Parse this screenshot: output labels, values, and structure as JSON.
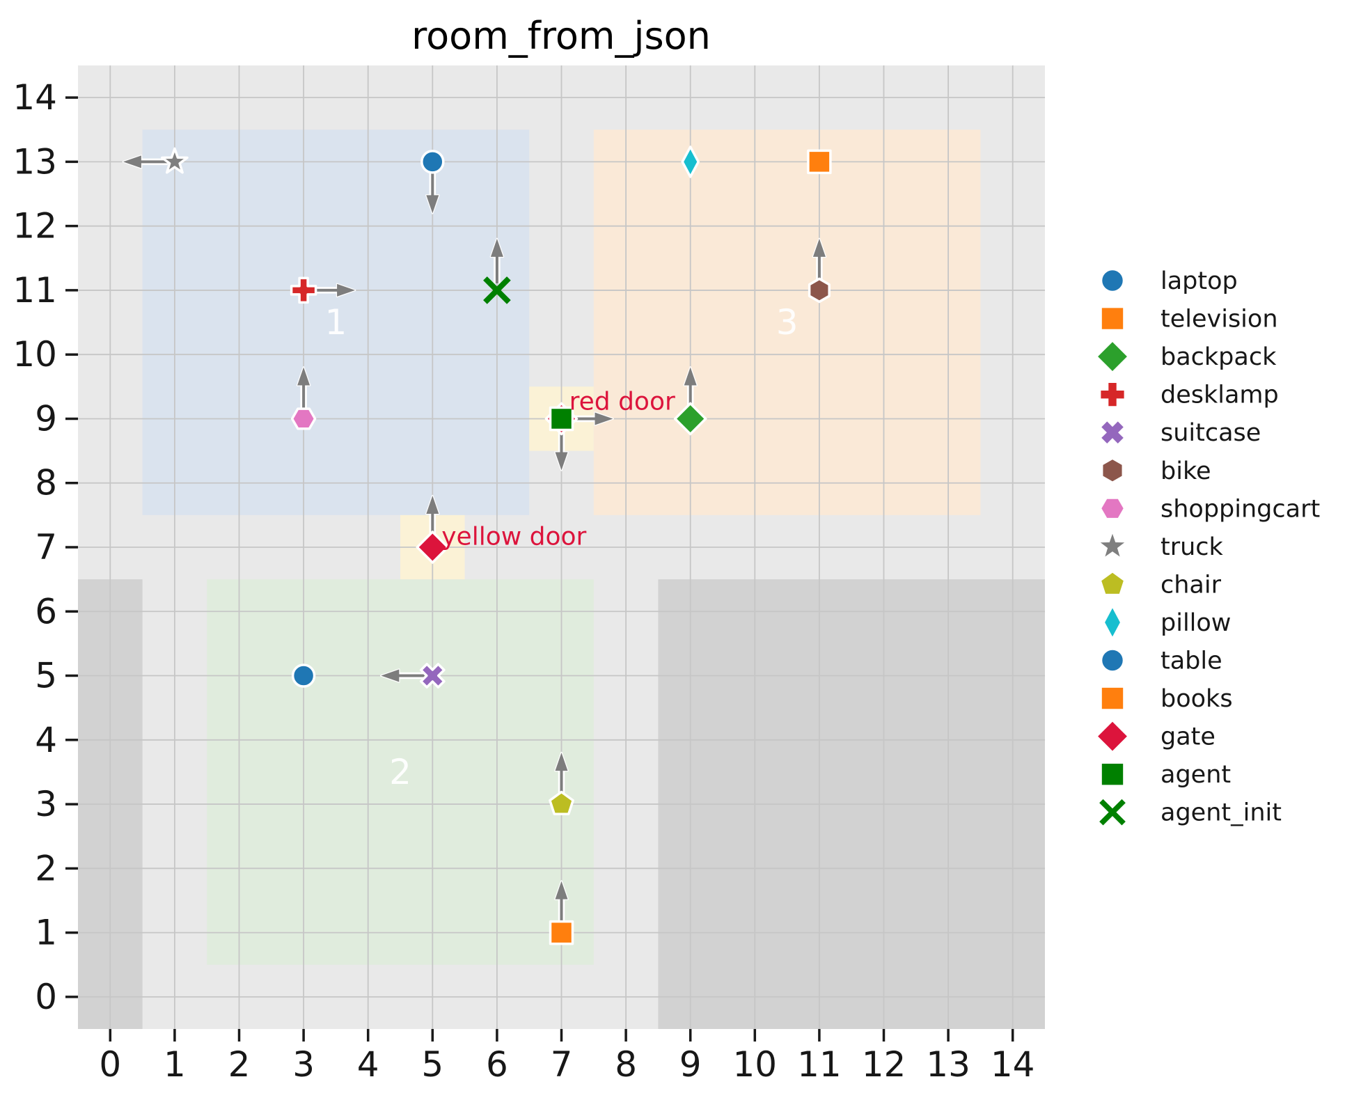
{
  "title": "room_from_json",
  "axes": {
    "x_ticks": [
      "0",
      "1",
      "2",
      "3",
      "4",
      "5",
      "6",
      "7",
      "8",
      "9",
      "10",
      "11",
      "12",
      "13",
      "14"
    ],
    "y_ticks": [
      "0",
      "1",
      "2",
      "3",
      "4",
      "5",
      "6",
      "7",
      "8",
      "9",
      "10",
      "11",
      "12",
      "13",
      "14"
    ]
  },
  "palette": {
    "plot_bg": "#e9e9e9",
    "grid": "#c6c6c6",
    "blocked_area": "#d2d2d2",
    "door_area": "#fbf2d6",
    "arrow": "#7d7d7d",
    "marker_edge": "#ffffff",
    "door_label": "#dc143c",
    "tick": "#1a1a1a"
  },
  "chart_data": {
    "type": "scatter",
    "title": "room_from_json",
    "xlabel": "",
    "ylabel": "",
    "xlim": [
      -0.5,
      14.5
    ],
    "ylim": [
      -0.5,
      14.5
    ],
    "grid": true,
    "legend_position": "right-outside",
    "x_ticks": [
      0,
      1,
      2,
      3,
      4,
      5,
      6,
      7,
      8,
      9,
      10,
      11,
      12,
      13,
      14
    ],
    "y_ticks": [
      0,
      1,
      2,
      3,
      4,
      5,
      6,
      7,
      8,
      9,
      10,
      11,
      12,
      13,
      14
    ],
    "rooms": [
      {
        "id": "1",
        "label": "1",
        "x0": 0.5,
        "y0": 7.5,
        "x1": 6.5,
        "y1": 13.5,
        "color": "#dae3ee",
        "label_x": 3.5,
        "label_y": 10.5
      },
      {
        "id": "2",
        "label": "2",
        "x0": 1.5,
        "y0": 0.5,
        "x1": 7.5,
        "y1": 6.5,
        "color": "#e0ecdd",
        "label_x": 4.5,
        "label_y": 3.5
      },
      {
        "id": "3",
        "label": "3",
        "x0": 7.5,
        "y0": 7.5,
        "x1": 13.5,
        "y1": 13.5,
        "color": "#fae9d7",
        "label_x": 10.5,
        "label_y": 10.5
      }
    ],
    "blocked_areas": [
      {
        "id": "blocked-left",
        "x0": -0.5,
        "y0": -0.5,
        "x1": 0.5,
        "y1": 6.5
      },
      {
        "id": "blocked-bottom-right",
        "x0": 8.5,
        "y0": -0.5,
        "x1": 14.5,
        "y1": 6.5
      }
    ],
    "doors": [
      {
        "name": "yellow door",
        "label": "yellow door",
        "x": 5,
        "y": 7,
        "x0": 4.5,
        "y0": 6.5,
        "x1": 5.5,
        "y1": 7.5,
        "label_x": 5.14,
        "label_y": 7.17
      },
      {
        "name": "red door",
        "label": "red door",
        "x": 7,
        "y": 9,
        "x0": 6.5,
        "y0": 8.5,
        "x1": 7.5,
        "y1": 9.5,
        "label_x": 7.12,
        "label_y": 9.27
      }
    ],
    "objects": [
      {
        "name": "truck",
        "x": 1,
        "y": 13,
        "marker": "star",
        "color": "#7f7f7f",
        "arrow": "left"
      },
      {
        "name": "laptop",
        "x": 5,
        "y": 13,
        "marker": "circle",
        "color": "#1f77b4",
        "arrow": "down"
      },
      {
        "name": "pillow",
        "x": 9,
        "y": 13,
        "marker": "thin-diamond",
        "color": "#17becf",
        "arrow": null
      },
      {
        "name": "television",
        "x": 11,
        "y": 13,
        "marker": "square",
        "color": "#ff7f0e",
        "arrow": null
      },
      {
        "name": "desklamp",
        "x": 3,
        "y": 11,
        "marker": "plus",
        "color": "#d62728",
        "arrow": "right"
      },
      {
        "name": "agent_init",
        "x": 6,
        "y": 11,
        "marker": "x-thin",
        "color": "#008000",
        "arrow": "up"
      },
      {
        "name": "bike",
        "x": 11,
        "y": 11,
        "marker": "hexagon-v",
        "color": "#8c564b",
        "arrow": "up"
      },
      {
        "name": "shoppingcart",
        "x": 3,
        "y": 9,
        "marker": "hexagon-h",
        "color": "#e377c2",
        "arrow": "up"
      },
      {
        "name": "gate-red-door",
        "x": 7,
        "y": 9,
        "marker": "diamond",
        "color": "#dc143c",
        "arrow": "down"
      },
      {
        "name": "agent",
        "x": 7,
        "y": 9,
        "marker": "square",
        "color": "#008000",
        "arrow": "right"
      },
      {
        "name": "backpack",
        "x": 9,
        "y": 9,
        "marker": "diamond",
        "color": "#2ca02c",
        "arrow": "up"
      },
      {
        "name": "gate-yellow-door",
        "x": 5,
        "y": 7,
        "marker": "diamond",
        "color": "#dc143c",
        "arrow": "up"
      },
      {
        "name": "table",
        "x": 3,
        "y": 5,
        "marker": "circle",
        "color": "#1f77b4",
        "arrow": null
      },
      {
        "name": "suitcase",
        "x": 5,
        "y": 5,
        "marker": "x",
        "color": "#9467bd",
        "arrow": "left"
      },
      {
        "name": "chair",
        "x": 7,
        "y": 3,
        "marker": "pentagon",
        "color": "#bcbd22",
        "arrow": "up"
      },
      {
        "name": "books",
        "x": 7,
        "y": 1,
        "marker": "square",
        "color": "#ff7f0e",
        "arrow": "up"
      }
    ],
    "legend": [
      {
        "label": "laptop",
        "marker": "circle",
        "color": "#1f77b4"
      },
      {
        "label": "television",
        "marker": "square",
        "color": "#ff7f0e"
      },
      {
        "label": "backpack",
        "marker": "diamond",
        "color": "#2ca02c"
      },
      {
        "label": "desklamp",
        "marker": "plus",
        "color": "#d62728"
      },
      {
        "label": "suitcase",
        "marker": "x",
        "color": "#9467bd"
      },
      {
        "label": "bike",
        "marker": "hexagon-v",
        "color": "#8c564b"
      },
      {
        "label": "shoppingcart",
        "marker": "hexagon-h",
        "color": "#e377c2"
      },
      {
        "label": "truck",
        "marker": "star",
        "color": "#7f7f7f"
      },
      {
        "label": "chair",
        "marker": "pentagon",
        "color": "#bcbd22"
      },
      {
        "label": "pillow",
        "marker": "thin-diamond",
        "color": "#17becf"
      },
      {
        "label": "table",
        "marker": "circle",
        "color": "#1f77b4"
      },
      {
        "label": "books",
        "marker": "square",
        "color": "#ff7f0e"
      },
      {
        "label": "gate",
        "marker": "diamond",
        "color": "#dc143c"
      },
      {
        "label": "agent",
        "marker": "square",
        "color": "#008000"
      },
      {
        "label": "agent_init",
        "marker": "x-thin",
        "color": "#008000"
      }
    ]
  }
}
